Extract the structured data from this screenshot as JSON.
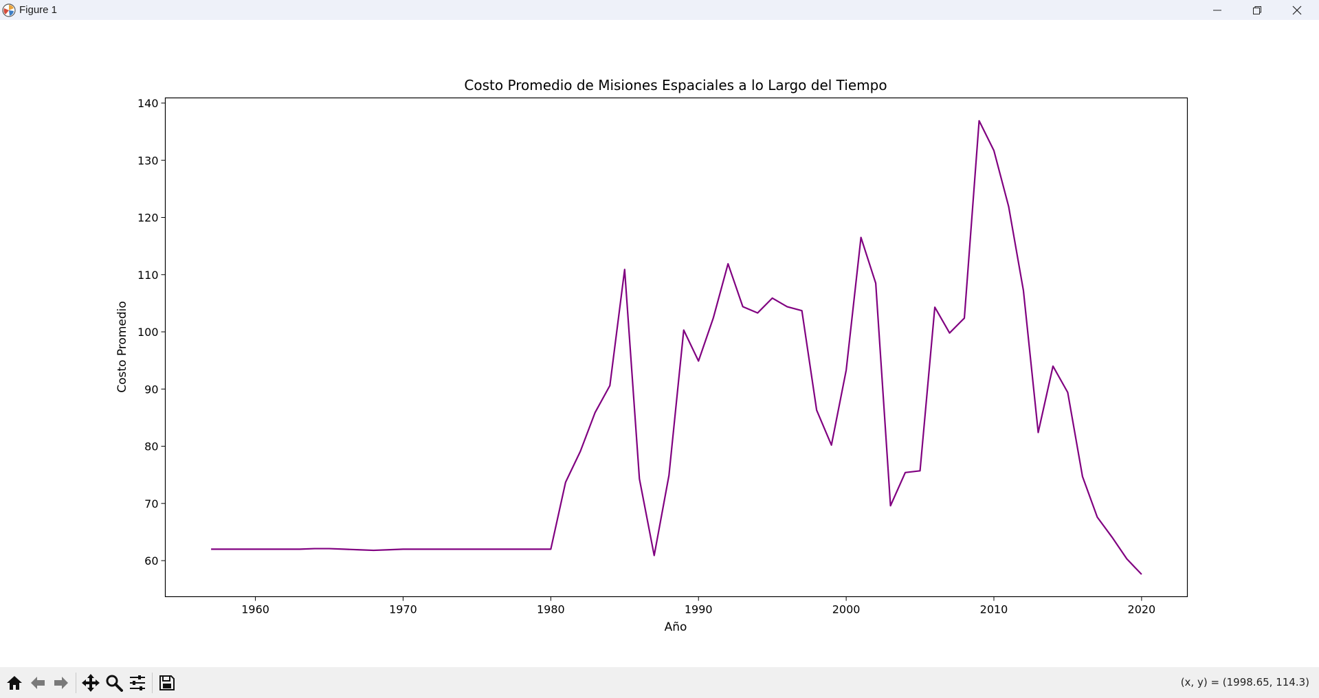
{
  "window": {
    "title": "Figure 1",
    "controls": [
      "minimize",
      "restore",
      "close"
    ]
  },
  "toolbar": {
    "buttons": [
      "home-icon",
      "back-icon",
      "forward-icon",
      "pan-icon",
      "zoom-icon",
      "configure-subplots-icon",
      "save-icon"
    ],
    "coords": "(x, y) = (1998.65, 114.3)"
  },
  "colors": {
    "line": "#800080",
    "titlebar": "#eef1f9",
    "toolbar": "#f0f0f0"
  },
  "chart_data": {
    "type": "line",
    "title": "Costo Promedio de Misiones Espaciales a lo Largo del Tiempo",
    "xlabel": "Año",
    "ylabel": "Costo Promedio",
    "xlim": [
      1953.9,
      2023.1
    ],
    "ylim": [
      53.7,
      140.9
    ],
    "xticks": [
      1960,
      1970,
      1980,
      1990,
      2000,
      2010,
      2020
    ],
    "yticks": [
      60,
      70,
      80,
      90,
      100,
      110,
      120,
      130,
      140
    ],
    "grid": false,
    "series": [
      {
        "name": "Costo Promedio",
        "color": "#800080",
        "x": [
          1957,
          1958,
          1959,
          1960,
          1961,
          1962,
          1963,
          1964,
          1965,
          1966,
          1967,
          1968,
          1969,
          1970,
          1971,
          1972,
          1973,
          1974,
          1975,
          1976,
          1977,
          1978,
          1979,
          1980,
          1981,
          1982,
          1983,
          1984,
          1985,
          1986,
          1987,
          1988,
          1989,
          1990,
          1991,
          1992,
          1993,
          1994,
          1995,
          1996,
          1997,
          1998,
          1999,
          2000,
          2001,
          2002,
          2003,
          2004,
          2005,
          2006,
          2007,
          2008,
          2009,
          2010,
          2011,
          2012,
          2013,
          2014,
          2015,
          2016,
          2017,
          2018,
          2019,
          2020
        ],
        "y": [
          62.0,
          62.0,
          62.0,
          62.0,
          62.0,
          62.0,
          62.0,
          62.1,
          62.1,
          62.0,
          61.9,
          61.8,
          61.9,
          62.0,
          62.0,
          62.0,
          62.0,
          62.0,
          62.0,
          62.0,
          62.0,
          62.0,
          62.0,
          62.0,
          73.7,
          79.1,
          85.9,
          90.6,
          110.9,
          74.3,
          60.9,
          74.9,
          100.3,
          94.9,
          102.4,
          111.9,
          104.4,
          103.3,
          105.9,
          104.4,
          103.7,
          86.3,
          80.2,
          93.3,
          116.5,
          108.5,
          69.6,
          75.4,
          75.7,
          104.3,
          99.8,
          102.4,
          136.9,
          131.7,
          121.9,
          107.2,
          82.4,
          94.0,
          89.4,
          74.7,
          67.6,
          64.1,
          60.3,
          57.6
        ]
      }
    ]
  }
}
